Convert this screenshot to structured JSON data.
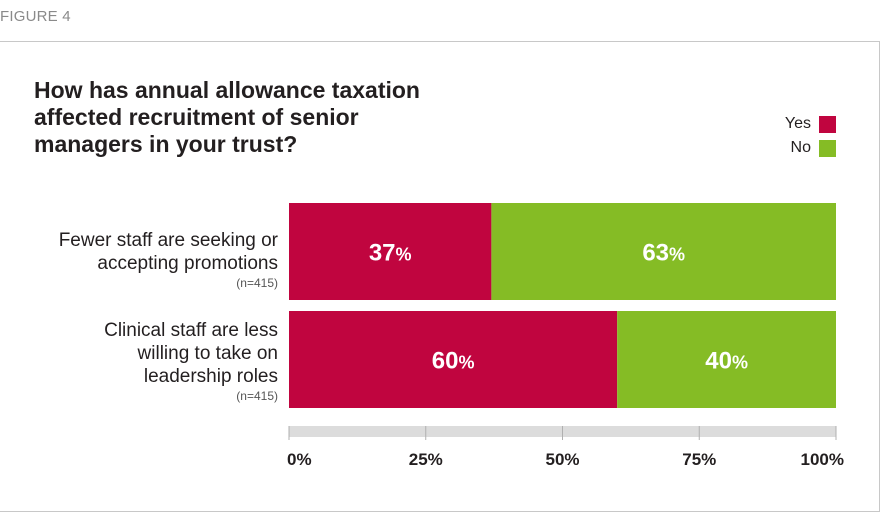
{
  "figure_label": "FIGURE 4",
  "chart_data": {
    "type": "bar",
    "orientation": "horizontal",
    "stacked": true,
    "title": "How has annual allowance taxation affected recruitment of senior managers in your trust?",
    "categories": [
      {
        "label": "Fewer staff are seeking or accepting promotions",
        "n": "(n=415)"
      },
      {
        "label": "Clinical staff are less willing to take on leadership roles",
        "n": "(n=415)"
      }
    ],
    "series": [
      {
        "name": "Yes",
        "color": "#c0053f",
        "values": [
          37,
          60
        ]
      },
      {
        "name": "No",
        "color": "#85bc25",
        "values": [
          63,
          40
        ]
      }
    ],
    "value_labels": [
      [
        "37%",
        "63%"
      ],
      [
        "60%",
        "40%"
      ]
    ],
    "xlim": [
      0,
      100
    ],
    "xticks": [
      0,
      25,
      50,
      75,
      100
    ],
    "xtick_labels": [
      "0%",
      "25%",
      "50%",
      "75%",
      "100%"
    ],
    "legend_position": "top-right",
    "axis_color": "#dcdcdc"
  }
}
